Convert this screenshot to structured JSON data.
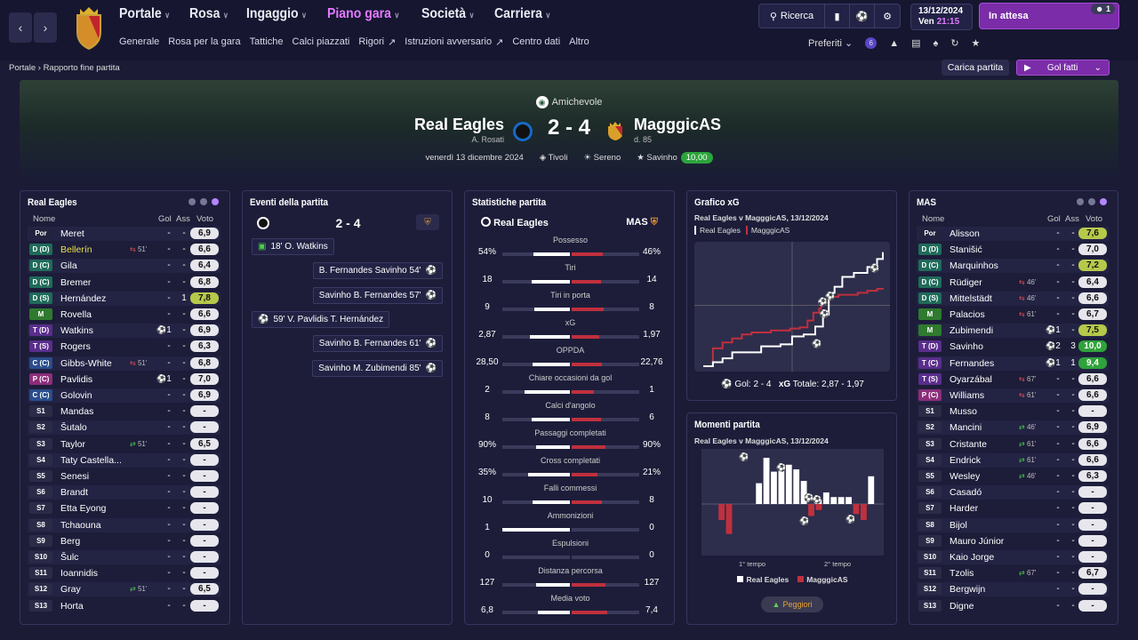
{
  "header": {
    "main_nav": [
      {
        "label": "Portale",
        "active": false
      },
      {
        "label": "Rosa",
        "active": false
      },
      {
        "label": "Ingaggio",
        "active": false
      },
      {
        "label": "Piano gara",
        "active": true
      },
      {
        "label": "Società",
        "active": false
      },
      {
        "label": "Carriera",
        "active": false
      }
    ],
    "sub_nav": [
      "Generale",
      "Rosa per la gara",
      "Tattiche",
      "Calci piazzati",
      "Rigori",
      "Istruzioni avversario",
      "Centro dati",
      "Altro"
    ],
    "search_label": "Ricerca",
    "date": "13/12/2024",
    "day_time_day": "Ven",
    "day_time_time": "21:15",
    "wait_label": "In attesa",
    "wait_count": "1",
    "prefs_label": "Preferiti",
    "prefs_badge": "6"
  },
  "breadcrumb": {
    "root": "Portale",
    "current": "Rapporto fine partita"
  },
  "actions": {
    "reload": "Carica partita",
    "goals": "Gol fatti"
  },
  "match": {
    "competition": "Amichevole",
    "home": "Real Eagles",
    "home_manager": "A. Rosati",
    "away": "MagggicAS",
    "away_manager": "d. 85",
    "score": "2 - 4",
    "date": "venerdì 13 dicembre 2024",
    "venue": "Tivoli",
    "weather": "Sereno",
    "pom": "Savinho",
    "pom_rating": "10,00"
  },
  "home_panel": {
    "title": "Real Eagles",
    "cols": {
      "name": "Nome",
      "goals": "Gol",
      "assists": "Ass",
      "rating": "Voto"
    },
    "players": [
      {
        "pos": "Por",
        "name": "Meret",
        "sub": "",
        "g": "-",
        "a": "-",
        "r": "6,9",
        "posc": "#23233f",
        "rc": ""
      },
      {
        "pos": "D (D)",
        "name": "Bellerín",
        "sub": "51'",
        "g": "-",
        "a": "-",
        "r": "6,6",
        "posc": "#1f6b5a",
        "rc": "",
        "hl": true
      },
      {
        "pos": "D (C)",
        "name": "Gila",
        "sub": "",
        "g": "-",
        "a": "-",
        "r": "6,4",
        "posc": "#1f6b5a",
        "rc": ""
      },
      {
        "pos": "D (C)",
        "name": "Bremer",
        "sub": "",
        "g": "-",
        "a": "-",
        "r": "6,8",
        "posc": "#1f6b5a",
        "rc": ""
      },
      {
        "pos": "D (S)",
        "name": "Hernández",
        "sub": "",
        "g": "-",
        "a": "1",
        "r": "7,8",
        "posc": "#1f6b5a",
        "rc": "gold"
      },
      {
        "pos": "M",
        "name": "Rovella",
        "sub": "",
        "g": "-",
        "a": "-",
        "r": "6,6",
        "posc": "#2f7a2f",
        "rc": ""
      },
      {
        "pos": "T (D)",
        "name": "Watkins",
        "sub": "",
        "g": "1",
        "a": "-",
        "r": "6,9",
        "posc": "#5a2d8c",
        "rc": "",
        "ball": true
      },
      {
        "pos": "T (S)",
        "name": "Rogers",
        "sub": "",
        "g": "-",
        "a": "-",
        "r": "6,3",
        "posc": "#5a2d8c",
        "rc": ""
      },
      {
        "pos": "C (C)",
        "name": "Gibbs-White",
        "sub": "51'",
        "g": "-",
        "a": "-",
        "r": "6,8",
        "posc": "#2a4d8c",
        "rc": ""
      },
      {
        "pos": "P (C)",
        "name": "Pavlidis",
        "sub": "",
        "g": "1",
        "a": "-",
        "r": "7,0",
        "posc": "#8c2d7a",
        "rc": "",
        "ball": true
      },
      {
        "pos": "C (C)",
        "name": "Golovin",
        "sub": "",
        "g": "-",
        "a": "-",
        "r": "6,9",
        "posc": "#2a4d8c",
        "rc": ""
      },
      {
        "pos": "S1",
        "name": "Mandas",
        "sub": "",
        "g": "-",
        "a": "-",
        "r": "-",
        "posc": "#2b2b48",
        "rc": ""
      },
      {
        "pos": "S2",
        "name": "Šutalo",
        "sub": "",
        "g": "-",
        "a": "-",
        "r": "-",
        "posc": "#2b2b48",
        "rc": ""
      },
      {
        "pos": "S3",
        "name": "Taylor",
        "sub": "51'",
        "g": "-",
        "a": "-",
        "r": "6,5",
        "posc": "#2b2b48",
        "rc": "",
        "subin": true
      },
      {
        "pos": "S4",
        "name": "Taty Castella...",
        "sub": "",
        "g": "-",
        "a": "-",
        "r": "-",
        "posc": "#2b2b48",
        "rc": ""
      },
      {
        "pos": "S5",
        "name": "Senesi",
        "sub": "",
        "g": "-",
        "a": "-",
        "r": "-",
        "posc": "#2b2b48",
        "rc": ""
      },
      {
        "pos": "S6",
        "name": "Brandt",
        "sub": "",
        "g": "-",
        "a": "-",
        "r": "-",
        "posc": "#2b2b48",
        "rc": ""
      },
      {
        "pos": "S7",
        "name": "Etta Eyong",
        "sub": "",
        "g": "-",
        "a": "-",
        "r": "-",
        "posc": "#2b2b48",
        "rc": ""
      },
      {
        "pos": "S8",
        "name": "Tchaouna",
        "sub": "",
        "g": "-",
        "a": "-",
        "r": "-",
        "posc": "#2b2b48",
        "rc": ""
      },
      {
        "pos": "S9",
        "name": "Berg",
        "sub": "",
        "g": "-",
        "a": "-",
        "r": "-",
        "posc": "#2b2b48",
        "rc": ""
      },
      {
        "pos": "S10",
        "name": "Šulc",
        "sub": "",
        "g": "-",
        "a": "-",
        "r": "-",
        "posc": "#2b2b48",
        "rc": ""
      },
      {
        "pos": "S11",
        "name": "Ioannidis",
        "sub": "",
        "g": "-",
        "a": "-",
        "r": "-",
        "posc": "#2b2b48",
        "rc": ""
      },
      {
        "pos": "S12",
        "name": "Gray",
        "sub": "51'",
        "g": "-",
        "a": "-",
        "r": "6,5",
        "posc": "#2b2b48",
        "rc": "",
        "subin": true
      },
      {
        "pos": "S13",
        "name": "Horta",
        "sub": "",
        "g": "-",
        "a": "-",
        "r": "-",
        "posc": "#2b2b48",
        "rc": ""
      }
    ]
  },
  "away_panel": {
    "title": "MAS",
    "cols": {
      "name": "Nome",
      "goals": "Gol",
      "assists": "Ass",
      "rating": "Voto"
    },
    "players": [
      {
        "pos": "Por",
        "name": "Alisson",
        "sub": "",
        "g": "-",
        "a": "-",
        "r": "7,6",
        "posc": "#23233f",
        "rc": "gold"
      },
      {
        "pos": "D (D)",
        "name": "Stanišić",
        "sub": "",
        "g": "-",
        "a": "-",
        "r": "7,0",
        "posc": "#1f6b5a",
        "rc": ""
      },
      {
        "pos": "D (C)",
        "name": "Marquinhos",
        "sub": "",
        "g": "-",
        "a": "-",
        "r": "7,2",
        "posc": "#1f6b5a",
        "rc": "gold"
      },
      {
        "pos": "D (C)",
        "name": "Rüdiger",
        "sub": "46'",
        "g": "-",
        "a": "-",
        "r": "6,4",
        "posc": "#1f6b5a",
        "rc": ""
      },
      {
        "pos": "D (S)",
        "name": "Mittelstädt",
        "sub": "46'",
        "g": "-",
        "a": "-",
        "r": "6,6",
        "posc": "#1f6b5a",
        "rc": ""
      },
      {
        "pos": "M",
        "name": "Palacios",
        "sub": "61'",
        "g": "-",
        "a": "-",
        "r": "6,7",
        "posc": "#2f7a2f",
        "rc": ""
      },
      {
        "pos": "M",
        "name": "Zubimendi",
        "sub": "",
        "g": "1",
        "a": "-",
        "r": "7,5",
        "posc": "#2f7a2f",
        "rc": "gold",
        "ball": true
      },
      {
        "pos": "T (D)",
        "name": "Savinho",
        "sub": "",
        "g": "2",
        "a": "3",
        "r": "10,0",
        "posc": "#5a2d8c",
        "rc": "green",
        "ball": true
      },
      {
        "pos": "T (C)",
        "name": "Fernandes",
        "sub": "",
        "g": "1",
        "a": "1",
        "r": "9,4",
        "posc": "#5a2d8c",
        "rc": "green",
        "ball": true
      },
      {
        "pos": "T (S)",
        "name": "Oyarzábal",
        "sub": "67'",
        "g": "-",
        "a": "-",
        "r": "6,6",
        "posc": "#5a2d8c",
        "rc": ""
      },
      {
        "pos": "P (C)",
        "name": "Williams",
        "sub": "61'",
        "g": "-",
        "a": "-",
        "r": "6,6",
        "posc": "#8c2d7a",
        "rc": ""
      },
      {
        "pos": "S1",
        "name": "Musso",
        "sub": "",
        "g": "-",
        "a": "-",
        "r": "-",
        "posc": "#2b2b48",
        "rc": ""
      },
      {
        "pos": "S2",
        "name": "Mancini",
        "sub": "46'",
        "g": "-",
        "a": "-",
        "r": "6,9",
        "posc": "#2b2b48",
        "rc": "",
        "subin": true
      },
      {
        "pos": "S3",
        "name": "Cristante",
        "sub": "61'",
        "g": "-",
        "a": "-",
        "r": "6,6",
        "posc": "#2b2b48",
        "rc": "",
        "subin": true
      },
      {
        "pos": "S4",
        "name": "Endrick",
        "sub": "61'",
        "g": "-",
        "a": "-",
        "r": "6,6",
        "posc": "#2b2b48",
        "rc": "",
        "subin": true
      },
      {
        "pos": "S5",
        "name": "Wesley",
        "sub": "46'",
        "g": "-",
        "a": "-",
        "r": "6,3",
        "posc": "#2b2b48",
        "rc": "",
        "subin": true
      },
      {
        "pos": "S6",
        "name": "Casadó",
        "sub": "",
        "g": "-",
        "a": "-",
        "r": "-",
        "posc": "#2b2b48",
        "rc": ""
      },
      {
        "pos": "S7",
        "name": "Harder",
        "sub": "",
        "g": "-",
        "a": "-",
        "r": "-",
        "posc": "#2b2b48",
        "rc": ""
      },
      {
        "pos": "S8",
        "name": "Bijol",
        "sub": "",
        "g": "-",
        "a": "-",
        "r": "-",
        "posc": "#2b2b48",
        "rc": ""
      },
      {
        "pos": "S9",
        "name": "Mauro Júnior",
        "sub": "",
        "g": "-",
        "a": "-",
        "r": "-",
        "posc": "#2b2b48",
        "rc": ""
      },
      {
        "pos": "S10",
        "name": "Kaio Jorge",
        "sub": "",
        "g": "-",
        "a": "-",
        "r": "-",
        "posc": "#2b2b48",
        "rc": ""
      },
      {
        "pos": "S11",
        "name": "Tzolis",
        "sub": "67'",
        "g": "-",
        "a": "-",
        "r": "6,7",
        "posc": "#2b2b48",
        "rc": "",
        "subin": true
      },
      {
        "pos": "S12",
        "name": "Bergwijn",
        "sub": "",
        "g": "-",
        "a": "-",
        "r": "-",
        "posc": "#2b2b48",
        "rc": ""
      },
      {
        "pos": "S13",
        "name": "Digne",
        "sub": "",
        "g": "-",
        "a": "-",
        "r": "-",
        "posc": "#2b2b48",
        "rc": ""
      }
    ]
  },
  "events": {
    "title": "Eventi della partita",
    "score": "2 - 4",
    "items": [
      {
        "side": "home",
        "type": "penalty",
        "text": "18'  O. Watkins"
      },
      {
        "side": "away",
        "type": "goal",
        "text": "B. Fernandes  Savinho  54'"
      },
      {
        "side": "away",
        "type": "goal",
        "text": "Savinho  B. Fernandes  57'"
      },
      {
        "side": "home",
        "type": "goal",
        "text": "59'  V. Pavlidis  T. Hernández"
      },
      {
        "side": "away",
        "type": "goal",
        "text": "Savinho  B. Fernandes  61'"
      },
      {
        "side": "away",
        "type": "goal",
        "text": "Savinho  M. Zubimendi  85'"
      }
    ]
  },
  "stats": {
    "title": "Statistiche partita",
    "home": "Real Eagles",
    "away": "MAS",
    "rows": [
      {
        "label": "Possesso",
        "h": "54%",
        "a": "46%",
        "hv": 54,
        "av": 46
      },
      {
        "label": "Tiri",
        "h": "18",
        "a": "14",
        "hv": 18,
        "av": 14
      },
      {
        "label": "Tiri in porta",
        "h": "9",
        "a": "8",
        "hv": 9,
        "av": 8
      },
      {
        "label": "xG",
        "h": "2,87",
        "a": "1,97",
        "hv": 2.87,
        "av": 1.97
      },
      {
        "label": "OPPDA",
        "h": "28,50",
        "a": "22,76",
        "hv": 28.5,
        "av": 22.76
      },
      {
        "label": "Chiare occasioni da gol",
        "h": "2",
        "a": "1",
        "hv": 2,
        "av": 1
      },
      {
        "label": "Calci d'angolo",
        "h": "8",
        "a": "6",
        "hv": 8,
        "av": 6
      },
      {
        "label": "Passaggi completati",
        "h": "90%",
        "a": "90%",
        "hv": 90,
        "av": 90
      },
      {
        "label": "Cross completati",
        "h": "35%",
        "a": "21%",
        "hv": 35,
        "av": 21
      },
      {
        "label": "Falli commessi",
        "h": "10",
        "a": "8",
        "hv": 10,
        "av": 8
      },
      {
        "label": "Ammonizioni",
        "h": "1",
        "a": "0",
        "hv": 1,
        "av": 0
      },
      {
        "label": "Espulsioni",
        "h": "0",
        "a": "0",
        "hv": 0,
        "av": 0
      },
      {
        "label": "Distanza percorsa",
        "h": "127",
        "a": "127",
        "hv": 127,
        "av": 127
      },
      {
        "label": "Media voto",
        "h": "6,8",
        "a": "7,4",
        "hv": 6.8,
        "av": 7.4
      }
    ]
  },
  "xg_panel": {
    "title": "Grafico xG",
    "subtitle": "Real Eagles v MagggicAS, 13/12/2024",
    "legend_home": "Real Eagles",
    "legend_away": "MagggicAS",
    "footer_goals": "Gol: 2 - 4",
    "footer_xg_label": "xG",
    "footer_xg": "Totale: 2,87 - 1,97"
  },
  "momentum_panel": {
    "title": "Momenti partita",
    "subtitle": "Real Eagles v MagggicAS, 13/12/2024",
    "first_half": "1° tempo",
    "second_half": "2° tempo",
    "legend_home": "Real Eagles",
    "legend_away": "MagggicAS",
    "worst_btn": "Peggiori"
  },
  "chart_data": [
    {
      "type": "line",
      "title": "Grafico xG",
      "xlabel": "",
      "ylabel": "",
      "series": [
        {
          "name": "Real Eagles",
          "color": "#ffffff",
          "x": [
            0,
            5,
            10,
            15,
            20,
            30,
            40,
            46,
            52,
            58,
            62,
            65,
            68,
            72,
            78,
            85,
            90,
            93
          ],
          "y": [
            0,
            0.1,
            0.2,
            0.35,
            0.35,
            0.5,
            0.55,
            0.75,
            0.8,
            1.0,
            1.3,
            1.85,
            2.0,
            2.25,
            2.35,
            2.5,
            2.7,
            2.87
          ]
        },
        {
          "name": "MagggicAS",
          "color": "#c0303d",
          "x": [
            0,
            5,
            10,
            15,
            20,
            25,
            35,
            45,
            50,
            54,
            57,
            60,
            61,
            65,
            70,
            80,
            85,
            90,
            93
          ],
          "y": [
            0,
            0.45,
            0.6,
            0.7,
            0.8,
            0.85,
            0.9,
            0.95,
            0.98,
            1.15,
            1.35,
            1.45,
            1.6,
            1.75,
            1.8,
            1.85,
            1.9,
            1.95,
            1.97
          ]
        }
      ]
    },
    {
      "type": "bar",
      "title": "Momenti partita",
      "series": [
        {
          "name": "Real Eagles",
          "color": "#ffffff",
          "values": [
            0,
            0,
            0,
            0,
            0,
            0,
            0.45,
            1.0,
            0.7,
            0.75,
            0.85,
            0.75,
            0.5,
            0,
            0.1,
            0.25,
            0.15,
            0.15,
            0.15,
            0,
            0,
            0.6
          ]
        },
        {
          "name": "MagggicAS",
          "color": "#c0303d",
          "values": [
            0,
            0.4,
            0.75,
            0,
            0,
            0,
            0,
            0,
            0,
            0,
            0,
            0,
            0,
            0.3,
            0.15,
            0,
            0,
            0,
            0,
            0.25,
            0.4,
            0
          ]
        }
      ]
    }
  ]
}
